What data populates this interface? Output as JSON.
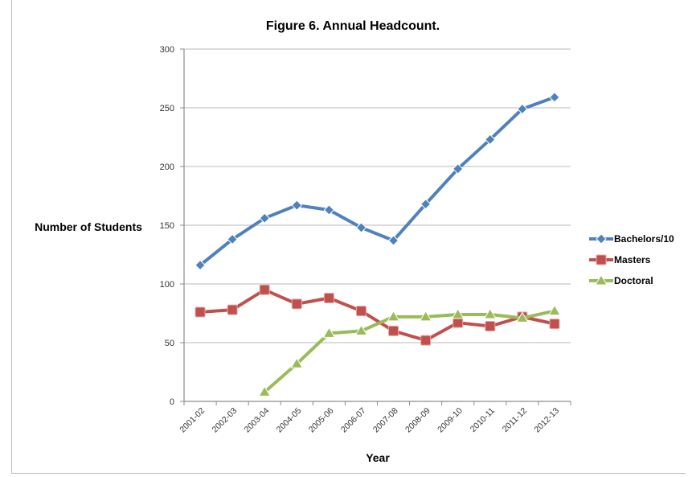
{
  "chart_data": {
    "type": "line",
    "title": "Figure 6. Annual Headcount.",
    "xlabel": "Year",
    "ylabel": "Number of Students",
    "ylim": [
      0,
      300
    ],
    "yticks": [
      0,
      50,
      100,
      150,
      200,
      250,
      300
    ],
    "grid": true,
    "legend_position": "right",
    "categories": [
      "2001-02",
      "2002-03",
      "2003-04",
      "2004-05",
      "2005-06",
      "2006-07",
      "2007-08",
      "2008-09",
      "2009-10",
      "2010-11",
      "2011-12",
      "2012-13"
    ],
    "series": [
      {
        "name": "Bachelors/10",
        "color": "#4f81bd",
        "marker": "diamond",
        "values": [
          116,
          138,
          156,
          167,
          163,
          148,
          137,
          168,
          198,
          223,
          249,
          259
        ]
      },
      {
        "name": "Masters",
        "color": "#c0504d",
        "marker": "square",
        "values": [
          76,
          78,
          95,
          83,
          88,
          77,
          60,
          52,
          67,
          64,
          72,
          66
        ]
      },
      {
        "name": "Doctoral",
        "color": "#9bbb59",
        "marker": "triangle",
        "values": [
          null,
          null,
          8,
          32,
          58,
          60,
          72,
          72,
          74,
          74,
          71,
          77
        ]
      }
    ]
  }
}
